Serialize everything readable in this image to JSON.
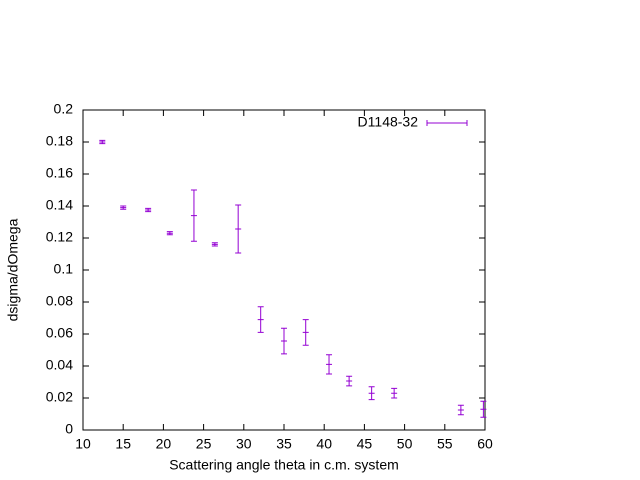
{
  "chart_data": {
    "type": "scatter",
    "xlabel": "Scattering angle theta in c.m. system",
    "ylabel": "dsigma/dOmega",
    "x": [
      12.4,
      15.0,
      18.1,
      20.8,
      23.8,
      26.4,
      29.3,
      32.1,
      35.0,
      37.7,
      40.6,
      43.1,
      45.9,
      48.7,
      57.0,
      59.8
    ],
    "series": [
      {
        "name": "D1148-32",
        "color": "#9400d3",
        "values": [
          0.18,
          0.139,
          0.1375,
          0.123,
          0.134,
          0.116,
          0.1256,
          0.069,
          0.0556,
          0.061,
          0.041,
          0.0306,
          0.023,
          0.023,
          0.0125,
          0.013
        ],
        "errors": [
          0.001,
          0.001,
          0.001,
          0.001,
          0.016,
          0.001,
          0.015,
          0.008,
          0.008,
          0.008,
          0.006,
          0.003,
          0.004,
          0.003,
          0.003,
          0.005
        ]
      }
    ],
    "xlim": [
      10,
      60
    ],
    "xticks": [
      10,
      15,
      20,
      25,
      30,
      35,
      40,
      45,
      50,
      55,
      60
    ],
    "ylim": [
      0,
      0.2
    ],
    "yticks": [
      0,
      0.02,
      0.04,
      0.06,
      0.08,
      0.1,
      0.12,
      0.14,
      0.16,
      0.18,
      0.2
    ],
    "legend": "top right",
    "grid": false
  }
}
